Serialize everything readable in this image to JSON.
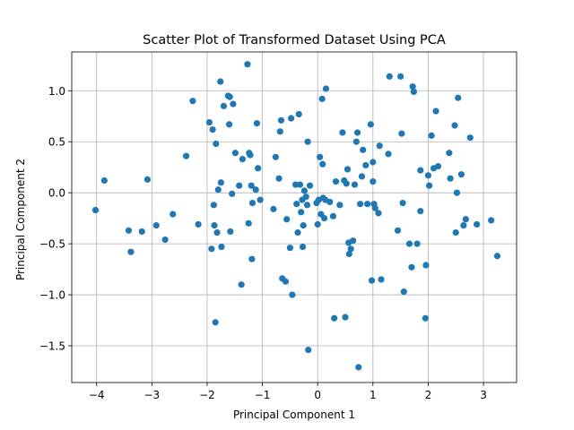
{
  "chart_data": {
    "type": "scatter",
    "title": "Scatter Plot of Transformed Dataset Using PCA",
    "xlabel": "Principal Component 1",
    "ylabel": "Principal Component 2",
    "xlim": [
      -4.45,
      3.6
    ],
    "ylim": [
      -1.86,
      1.38
    ],
    "xticks": [
      -4,
      -3,
      -2,
      -1,
      0,
      1,
      2,
      3
    ],
    "xtick_labels": [
      "−4",
      "−3",
      "−2",
      "−1",
      "0",
      "1",
      "2",
      "3"
    ],
    "yticks": [
      -1.5,
      -1.0,
      -0.5,
      0.0,
      0.5,
      1.0
    ],
    "ytick_labels": [
      "−1.5",
      "−1.0",
      "−0.5",
      "0.0",
      "0.5",
      "1.0"
    ],
    "grid": true,
    "marker_color": "#1f77b4",
    "points": [
      [
        -4.02,
        -0.17
      ],
      [
        -3.86,
        0.12
      ],
      [
        -3.42,
        -0.37
      ],
      [
        -3.38,
        -0.58
      ],
      [
        -3.18,
        -0.38
      ],
      [
        -3.08,
        0.13
      ],
      [
        -2.92,
        -0.32
      ],
      [
        -2.76,
        -0.46
      ],
      [
        -2.62,
        -0.21
      ],
      [
        -2.38,
        0.36
      ],
      [
        -2.26,
        0.9
      ],
      [
        -2.16,
        -0.31
      ],
      [
        -1.96,
        0.69
      ],
      [
        -1.92,
        -0.55
      ],
      [
        -1.9,
        0.62
      ],
      [
        -1.88,
        -0.12
      ],
      [
        -1.87,
        -0.32
      ],
      [
        -1.85,
        -1.27
      ],
      [
        -1.84,
        0.48
      ],
      [
        -1.82,
        -0.39
      ],
      [
        -1.8,
        0.03
      ],
      [
        -1.76,
        1.09
      ],
      [
        -1.75,
        0.1
      ],
      [
        -1.74,
        -0.53
      ],
      [
        -1.7,
        0.85
      ],
      [
        -1.62,
        0.95
      ],
      [
        -1.6,
        0.67
      ],
      [
        -1.59,
        0.94
      ],
      [
        -1.58,
        -0.38
      ],
      [
        -1.55,
        -0.01
      ],
      [
        -1.53,
        0.87
      ],
      [
        -1.49,
        0.39
      ],
      [
        -1.42,
        0.07
      ],
      [
        -1.38,
        -0.9
      ],
      [
        -1.36,
        0.33
      ],
      [
        -1.27,
        1.26
      ],
      [
        -1.25,
        -0.3
      ],
      [
        -1.24,
        0.39
      ],
      [
        -1.22,
        0.37
      ],
      [
        -1.2,
        0.07
      ],
      [
        -1.19,
        -0.65
      ],
      [
        -1.18,
        -0.1
      ],
      [
        -1.12,
        0.03
      ],
      [
        -1.1,
        0.68
      ],
      [
        -1.08,
        0.24
      ],
      [
        -1.04,
        -0.07
      ],
      [
        -0.8,
        -0.16
      ],
      [
        -0.76,
        0.35
      ],
      [
        -0.7,
        0.14
      ],
      [
        -0.68,
        0.6
      ],
      [
        -0.66,
        0.71
      ],
      [
        -0.64,
        -0.84
      ],
      [
        -0.58,
        -0.87
      ],
      [
        -0.56,
        -0.26
      ],
      [
        -0.5,
        -0.54
      ],
      [
        -0.48,
        0.73
      ],
      [
        -0.46,
        -1.0
      ],
      [
        -0.4,
        0.08
      ],
      [
        -0.38,
        -0.11
      ],
      [
        -0.36,
        -0.39
      ],
      [
        -0.34,
        0.77
      ],
      [
        -0.32,
        0.08
      ],
      [
        -0.3,
        -0.19
      ],
      [
        -0.28,
        -0.07
      ],
      [
        -0.27,
        -0.53
      ],
      [
        -0.26,
        -0.32
      ],
      [
        -0.24,
        0.02
      ],
      [
        -0.21,
        -0.04
      ],
      [
        -0.19,
        -0.12
      ],
      [
        -0.18,
        0.5
      ],
      [
        -0.17,
        -1.54
      ],
      [
        -0.14,
        0.07
      ],
      [
        -0.02,
        -0.1
      ],
      [
        0.0,
        -0.31
      ],
      [
        0.02,
        -0.07
      ],
      [
        0.04,
        0.35
      ],
      [
        0.06,
        -0.21
      ],
      [
        0.08,
        0.92
      ],
      [
        0.09,
        0.28
      ],
      [
        0.1,
        -0.05
      ],
      [
        0.12,
        -0.25
      ],
      [
        0.14,
        -0.07
      ],
      [
        0.15,
        1.02
      ],
      [
        0.22,
        -0.09
      ],
      [
        0.28,
        -0.23
      ],
      [
        0.3,
        -1.23
      ],
      [
        0.33,
        0.11
      ],
      [
        0.4,
        -0.12
      ],
      [
        0.45,
        0.59
      ],
      [
        0.48,
        0.12
      ],
      [
        0.5,
        -1.22
      ],
      [
        0.52,
        0.09
      ],
      [
        0.54,
        0.23
      ],
      [
        0.56,
        -0.49
      ],
      [
        0.57,
        -0.6
      ],
      [
        0.6,
        -0.55
      ],
      [
        0.64,
        -0.47
      ],
      [
        0.67,
        0.08
      ],
      [
        0.7,
        0.5
      ],
      [
        0.72,
        0.59
      ],
      [
        0.74,
        -1.71
      ],
      [
        0.77,
        -0.11
      ],
      [
        0.8,
        0.16
      ],
      [
        0.82,
        0.42
      ],
      [
        0.87,
        0.27
      ],
      [
        0.9,
        -0.11
      ],
      [
        0.96,
        0.67
      ],
      [
        0.98,
        -0.86
      ],
      [
        1.0,
        0.3
      ],
      [
        1.0,
        0.11
      ],
      [
        1.02,
        -0.11
      ],
      [
        1.04,
        -0.15
      ],
      [
        1.1,
        -0.2
      ],
      [
        1.12,
        0.46
      ],
      [
        1.15,
        -0.85
      ],
      [
        1.28,
        0.38
      ],
      [
        1.3,
        1.14
      ],
      [
        1.45,
        -0.37
      ],
      [
        1.5,
        1.14
      ],
      [
        1.52,
        0.58
      ],
      [
        1.54,
        -0.1
      ],
      [
        1.56,
        -0.97
      ],
      [
        1.66,
        -0.5
      ],
      [
        1.7,
        -0.73
      ],
      [
        1.72,
        1.04
      ],
      [
        1.74,
        0.99
      ],
      [
        1.8,
        -0.5
      ],
      [
        1.86,
        -0.18
      ],
      [
        1.86,
        0.22
      ],
      [
        1.95,
        -1.23
      ],
      [
        1.96,
        -0.71
      ],
      [
        2.0,
        0.17
      ],
      [
        2.02,
        0.07
      ],
      [
        2.06,
        0.56
      ],
      [
        2.1,
        0.24
      ],
      [
        2.14,
        0.8
      ],
      [
        2.18,
        0.26
      ],
      [
        2.38,
        0.39
      ],
      [
        2.4,
        0.14
      ],
      [
        2.48,
        0.66
      ],
      [
        2.5,
        -0.39
      ],
      [
        2.52,
        0.0
      ],
      [
        2.54,
        0.93
      ],
      [
        2.6,
        0.18
      ],
      [
        2.64,
        -0.32
      ],
      [
        2.68,
        -0.26
      ],
      [
        2.76,
        0.54
      ],
      [
        2.88,
        -0.31
      ],
      [
        3.14,
        -0.27
      ],
      [
        3.25,
        -0.62
      ]
    ]
  }
}
